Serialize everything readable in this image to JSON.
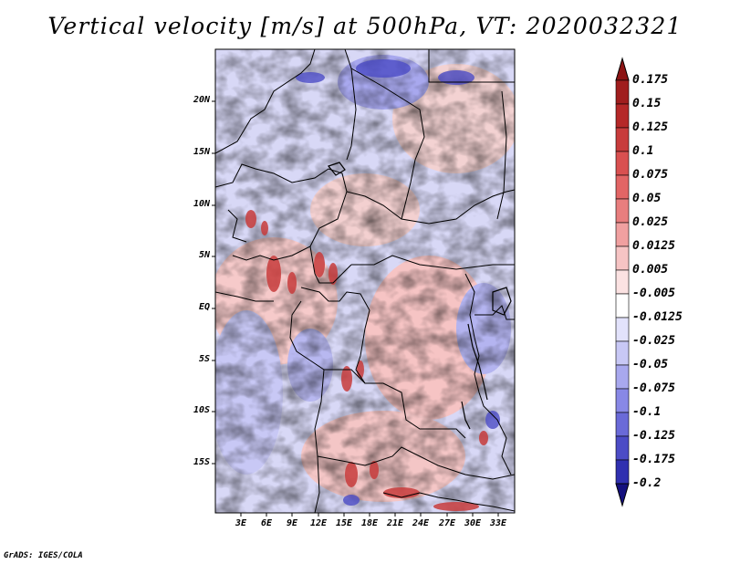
{
  "title": "Vertical velocity [m/s] at 500hPa, VT: 2020032321",
  "credit": "GrADS: IGES/COLA",
  "map": {
    "lat_labels": [
      "20N",
      "15N",
      "10N",
      "5N",
      "EQ",
      "5S",
      "10S",
      "15S"
    ],
    "lon_labels": [
      "3E",
      "6E",
      "9E",
      "12E",
      "15E",
      "18E",
      "21E",
      "24E",
      "27E",
      "30E",
      "33E"
    ]
  },
  "colorbar": {
    "levels": [
      "0.175",
      "0.15",
      "0.125",
      "0.1",
      "0.075",
      "0.05",
      "0.025",
      "0.0125",
      "0.005",
      "-0.005",
      "-0.0125",
      "-0.025",
      "-0.05",
      "-0.075",
      "-0.1",
      "-0.125",
      "-0.175",
      "-0.2"
    ],
    "colors": [
      "#a01e1e",
      "#b52828",
      "#c83c3c",
      "#d95050",
      "#e26565",
      "#e87e7e",
      "#f0a0a0",
      "#f6c4c4",
      "#fbe2e2",
      "#ffffff",
      "#e2e2fb",
      "#c8c8f5",
      "#a8a8ee",
      "#8888e6",
      "#6a6ad8",
      "#4c4cc6",
      "#3030b0",
      "#1c1c96"
    ],
    "top_arrow_color": "#8c1414",
    "bottom_arrow_color": "#14107e"
  }
}
